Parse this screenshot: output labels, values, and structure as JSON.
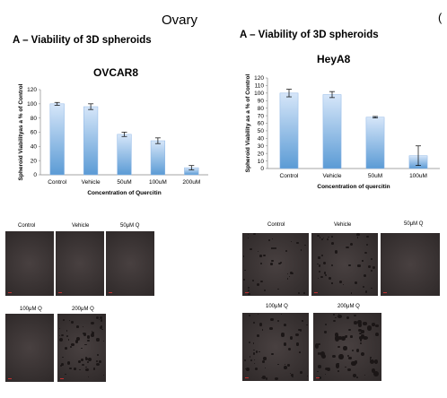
{
  "header": {
    "title": "Ovary",
    "right_glyph": "("
  },
  "left_section": {
    "title": "A – Viability of 3D spheroids",
    "images": [
      {
        "label": "Control"
      },
      {
        "label": "Vehicle"
      },
      {
        "label": "50μM Q"
      },
      {
        "label": "100μM Q"
      },
      {
        "label": "200μM Q"
      }
    ]
  },
  "right_section": {
    "title": "A – Viability of 3D spheroids",
    "images": [
      {
        "label": "Control"
      },
      {
        "label": "Vehicle"
      },
      {
        "label": "50μM Q"
      },
      {
        "label": "100μM Q"
      },
      {
        "label": "200μM Q"
      }
    ]
  },
  "colors": {
    "bar_top": "#cfe2f8",
    "bar_bottom": "#5b9bd5",
    "error_bar": "#000000",
    "panel_bg": "#3f3838"
  },
  "chart_data": [
    {
      "type": "bar",
      "title": "OVCAR8",
      "categories": [
        "Control",
        "Vehicle",
        "50uM",
        "100uM",
        "200uM"
      ],
      "values": [
        100,
        96,
        57,
        48,
        10
      ],
      "errors": [
        2,
        4,
        3,
        4,
        3
      ],
      "xlabel": "Concentration of Quercitin",
      "ylabel": "Spheroid Viabilityas a % of Control",
      "ylim": [
        0,
        120
      ],
      "yticks": [
        "0",
        "20",
        "40",
        "60",
        "80",
        "100",
        "120"
      ],
      "grid": false,
      "legend": "none"
    },
    {
      "type": "bar",
      "title": "HeyA8",
      "categories": [
        "Control",
        "Vehicle",
        "50uM",
        "100uM"
      ],
      "values": [
        100,
        98,
        68,
        17
      ],
      "errors": [
        5,
        4,
        1,
        13
      ],
      "xlabel": "Concentration of quercitin",
      "ylabel": "Spheroid Viability as a % of Control",
      "ylim": [
        0,
        120
      ],
      "yticks": [
        "0",
        "10",
        "20",
        "30",
        "40",
        "50",
        "60",
        "70",
        "80",
        "90",
        "100",
        "110",
        "120"
      ],
      "grid": false,
      "legend": "none"
    }
  ]
}
